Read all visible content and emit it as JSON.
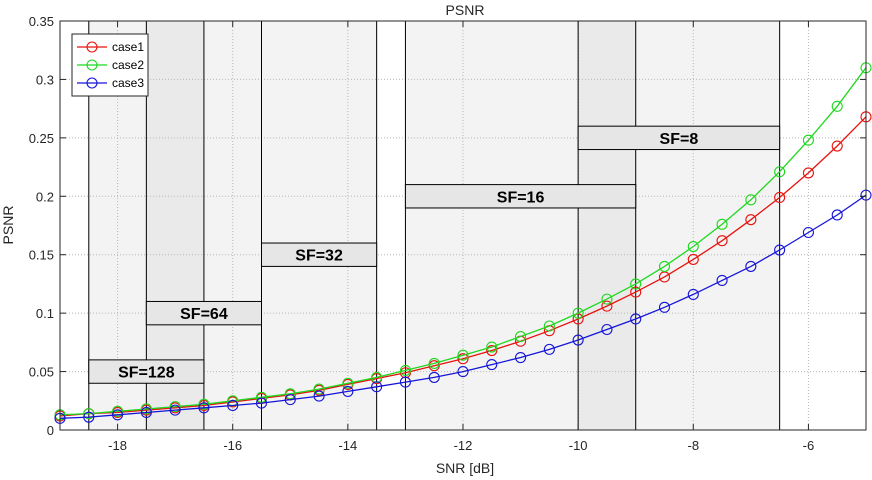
{
  "chart_data": {
    "type": "line",
    "title": "PSNR",
    "xlabel": "SNR [dB]",
    "ylabel": "PSNR",
    "xlim": [
      -19,
      -5
    ],
    "ylim": [
      0,
      0.35
    ],
    "xticks": [
      -18,
      -16,
      -14,
      -12,
      -10,
      -8,
      -6
    ],
    "yticks": [
      0,
      0.05,
      0.1,
      0.15,
      0.2,
      0.25,
      0.3,
      0.35
    ],
    "xtick_labels": [
      "-18",
      "-16",
      "-14",
      "-12",
      "-10",
      "-8",
      "-6"
    ],
    "ytick_labels": [
      "0",
      "0.05",
      "0.1",
      "0.15",
      "0.2",
      "0.25",
      "0.3",
      "0.35"
    ],
    "grid": true,
    "legend_position": "top-left",
    "x": [
      -19,
      -18.5,
      -18,
      -17.5,
      -17,
      -16.5,
      -16,
      -15.5,
      -15,
      -14.5,
      -14,
      -13.5,
      -13,
      -12.5,
      -12,
      -11.5,
      -11,
      -10.5,
      -10,
      -9.5,
      -9,
      -8.5,
      -8,
      -7.5,
      -7,
      -6.5,
      -6,
      -5.5,
      -5
    ],
    "series": [
      {
        "name": "case1",
        "color": "#e8130e",
        "values": [
          0.012,
          0.014,
          0.015,
          0.017,
          0.019,
          0.021,
          0.024,
          0.027,
          0.03,
          0.034,
          0.039,
          0.044,
          0.049,
          0.055,
          0.061,
          0.068,
          0.076,
          0.085,
          0.095,
          0.106,
          0.118,
          0.131,
          0.146,
          0.162,
          0.18,
          0.199,
          0.22,
          0.243,
          0.268
        ]
      },
      {
        "name": "case2",
        "color": "#1fd81f",
        "values": [
          0.013,
          0.014,
          0.016,
          0.018,
          0.02,
          0.022,
          0.025,
          0.028,
          0.031,
          0.035,
          0.04,
          0.045,
          0.051,
          0.057,
          0.064,
          0.071,
          0.08,
          0.089,
          0.1,
          0.112,
          0.125,
          0.14,
          0.157,
          0.176,
          0.197,
          0.221,
          0.248,
          0.277,
          0.31
        ]
      },
      {
        "name": "case3",
        "color": "#1515d9",
        "values": [
          0.01,
          0.011,
          0.013,
          0.015,
          0.017,
          0.019,
          0.021,
          0.023,
          0.026,
          0.029,
          0.033,
          0.037,
          0.041,
          0.045,
          0.05,
          0.056,
          0.062,
          0.069,
          0.077,
          0.086,
          0.095,
          0.105,
          0.116,
          0.128,
          0.14,
          0.154,
          0.169,
          0.184,
          0.201
        ]
      }
    ],
    "annotations": [
      {
        "label": "SF=128",
        "x_range": [
          -18.5,
          -16.5
        ],
        "label_y_range": [
          0.04,
          0.06
        ]
      },
      {
        "label": "SF=64",
        "x_range": [
          -17.5,
          -15.5
        ],
        "label_y_range": [
          0.09,
          0.11
        ]
      },
      {
        "label": "SF=32",
        "x_range": [
          -15.5,
          -13.5
        ],
        "label_y_range": [
          0.14,
          0.16
        ]
      },
      {
        "label": "SF=16",
        "x_range": [
          -13,
          -9
        ],
        "label_y_range": [
          0.19,
          0.21
        ]
      },
      {
        "label": "SF=8",
        "x_range": [
          -10,
          -6.5
        ],
        "label_y_range": [
          0.24,
          0.26
        ]
      }
    ]
  }
}
